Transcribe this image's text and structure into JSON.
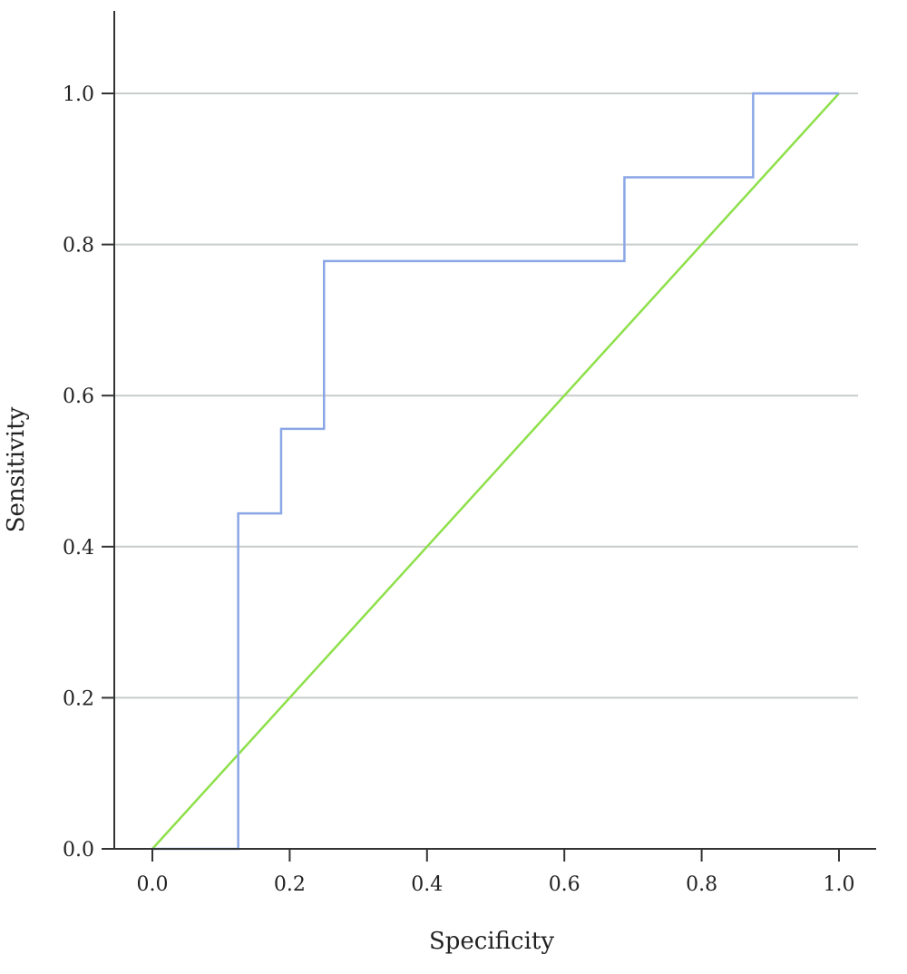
{
  "chart_data": {
    "type": "line",
    "title": "",
    "xlabel": "Specificity",
    "ylabel": "Sensitivity",
    "xlim": [
      -0.055,
      1.055
    ],
    "ylim": [
      0,
      1.11
    ],
    "x_ticks": [
      "0.0",
      "0.2",
      "0.4",
      "0.6",
      "0.8",
      "1.0"
    ],
    "y_ticks": [
      "0.0",
      "0.2",
      "0.4",
      "0.6",
      "0.8",
      "1.0"
    ],
    "grid": "horizontal",
    "series": [
      {
        "kind": "step",
        "color": "#8aa6e6",
        "x": [
          0.0,
          0.125,
          0.125,
          0.1875,
          0.1875,
          0.25,
          0.25,
          0.6875,
          0.6875,
          0.875,
          0.875,
          1.0
        ],
        "y": [
          0.0,
          0.0,
          0.444,
          0.444,
          0.556,
          0.556,
          0.778,
          0.778,
          0.889,
          0.889,
          1.0,
          1.0
        ]
      },
      {
        "kind": "reference",
        "color": "#8ee04a",
        "x": [
          0.0,
          1.0
        ],
        "y": [
          0.0,
          1.0
        ]
      }
    ]
  }
}
